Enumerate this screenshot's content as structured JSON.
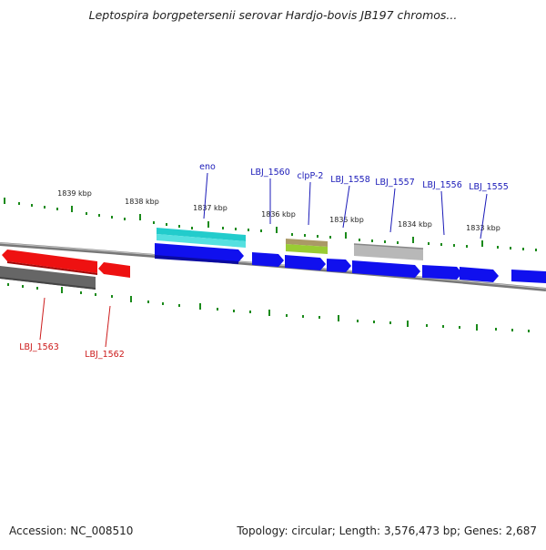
{
  "title": "Leptospira borgpetersenii serovar Hardjo-bovis JB197 chromos...",
  "footer": {
    "accession": "Accession: NC_008510",
    "summary": "Topology: circular; Length: 3,576,473 bp; Genes: 2,687"
  },
  "colors": {
    "forward_gene": "#1010ee",
    "reverse_gene": "#ee1111",
    "forward_label": "#1a1ab8",
    "reverse_label": "#cc1a1a",
    "tick": "#1a8a1a",
    "backbone": "#888888",
    "cds_reverse_feature": "#666666",
    "eno_feature": "#22cccc",
    "clpP_feature": "#99cc33",
    "clpP_feature_top": "#aa9966",
    "gray_feature": "#b8b8b8"
  },
  "kbp_labels": [
    "1839 kbp",
    "1838 kbp",
    "1837 kbp",
    "1836 kbp",
    "1835 kbp",
    "1834 kbp",
    "1833 kbp"
  ],
  "forward_gene_labels": [
    "eno",
    "LBJ_1560",
    "clpP-2",
    "LBJ_1558",
    "LBJ_1557",
    "LBJ_1556",
    "LBJ_1555"
  ],
  "reverse_gene_labels": [
    "LBJ_1563",
    "LBJ_1562"
  ]
}
